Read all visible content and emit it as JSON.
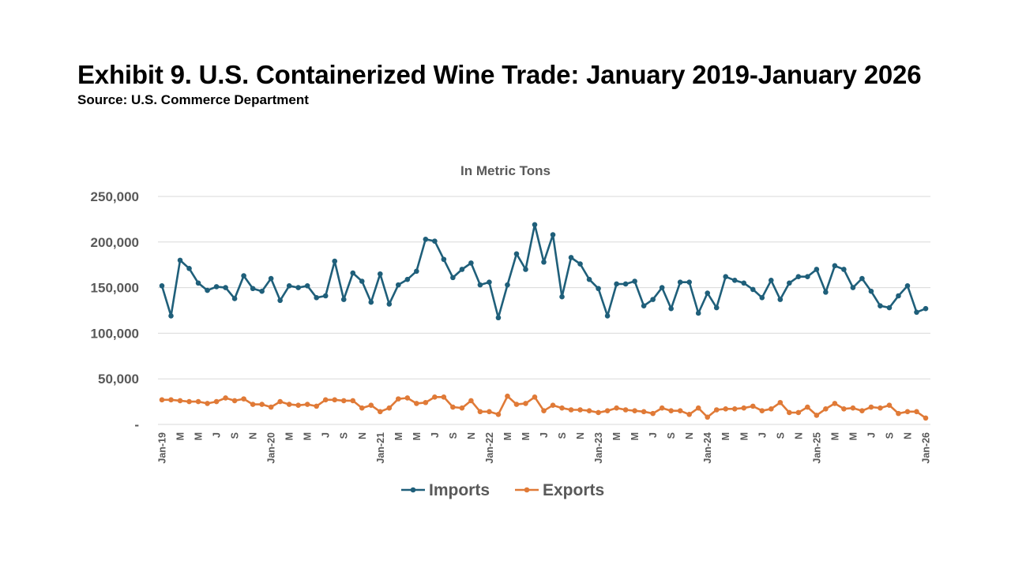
{
  "header": {
    "title": "Exhibit 9. U.S. Containerized Wine Trade: January 2019-January 2026",
    "source": "Source: U.S. Commerce Department"
  },
  "chart_data": {
    "type": "line",
    "subtitle": "In Metric Tons",
    "ylim": [
      0,
      250000
    ],
    "yticks": [
      0,
      50000,
      100000,
      150000,
      200000,
      250000
    ],
    "ytick_labels": [
      "-",
      "50,000",
      "100,000",
      "150,000",
      "200,000",
      "250,000"
    ],
    "grid": true,
    "legend_position": "bottom",
    "categories": [
      "Jan-19",
      "F",
      "M",
      "A",
      "M",
      "J",
      "J",
      "A",
      "S",
      "O",
      "N",
      "D",
      "Jan-20",
      "F",
      "M",
      "A",
      "M",
      "J",
      "J",
      "A",
      "S",
      "O",
      "N",
      "D",
      "Jan-21",
      "F",
      "M",
      "A",
      "M",
      "J",
      "J",
      "A",
      "S",
      "O",
      "N",
      "D",
      "Jan-22",
      "F",
      "M",
      "A",
      "M",
      "J",
      "J",
      "A",
      "S",
      "O",
      "N",
      "D",
      "Jan-23",
      "F",
      "M",
      "A",
      "M",
      "J",
      "J",
      "A",
      "S",
      "O",
      "N",
      "D",
      "Jan-24",
      "F",
      "M",
      "A",
      "M",
      "J",
      "J",
      "A",
      "S",
      "O",
      "N",
      "D",
      "Jan-25",
      "F",
      "M",
      "A",
      "M",
      "J",
      "J",
      "A",
      "S",
      "O",
      "N",
      "D",
      "Jan-26"
    ],
    "tick_labels": [
      {
        "index": 0,
        "label": "Jan-19"
      },
      {
        "index": 2,
        "label": "M"
      },
      {
        "index": 4,
        "label": "M"
      },
      {
        "index": 6,
        "label": "J"
      },
      {
        "index": 8,
        "label": "S"
      },
      {
        "index": 10,
        "label": "N"
      },
      {
        "index": 12,
        "label": "Jan-20"
      },
      {
        "index": 14,
        "label": "M"
      },
      {
        "index": 16,
        "label": "M"
      },
      {
        "index": 18,
        "label": "J"
      },
      {
        "index": 20,
        "label": "S"
      },
      {
        "index": 22,
        "label": "N"
      },
      {
        "index": 24,
        "label": "Jan-21"
      },
      {
        "index": 26,
        "label": "M"
      },
      {
        "index": 28,
        "label": "M"
      },
      {
        "index": 30,
        "label": "J"
      },
      {
        "index": 32,
        "label": "S"
      },
      {
        "index": 34,
        "label": "N"
      },
      {
        "index": 36,
        "label": "Jan-22"
      },
      {
        "index": 38,
        "label": "M"
      },
      {
        "index": 40,
        "label": "M"
      },
      {
        "index": 42,
        "label": "J"
      },
      {
        "index": 44,
        "label": "S"
      },
      {
        "index": 46,
        "label": "N"
      },
      {
        "index": 48,
        "label": "Jan-23"
      },
      {
        "index": 50,
        "label": "M"
      },
      {
        "index": 52,
        "label": "M"
      },
      {
        "index": 54,
        "label": "J"
      },
      {
        "index": 56,
        "label": "S"
      },
      {
        "index": 58,
        "label": "N"
      },
      {
        "index": 60,
        "label": "Jan-24"
      },
      {
        "index": 62,
        "label": "M"
      },
      {
        "index": 64,
        "label": "M"
      },
      {
        "index": 66,
        "label": "J"
      },
      {
        "index": 68,
        "label": "S"
      },
      {
        "index": 70,
        "label": "N"
      },
      {
        "index": 72,
        "label": "Jan-25"
      },
      {
        "index": 74,
        "label": "M"
      },
      {
        "index": 76,
        "label": "M"
      },
      {
        "index": 78,
        "label": "J"
      },
      {
        "index": 80,
        "label": "S"
      },
      {
        "index": 82,
        "label": "N"
      },
      {
        "index": 84,
        "label": "Jan-26"
      }
    ],
    "series": [
      {
        "name": "Imports",
        "color": "#1f5f7a",
        "values": [
          152000,
          119000,
          180000,
          171000,
          155000,
          147000,
          151000,
          150000,
          138000,
          163000,
          149000,
          146000,
          160000,
          136000,
          152000,
          150000,
          152000,
          139000,
          141000,
          179000,
          137000,
          166000,
          157000,
          134000,
          165000,
          132000,
          153000,
          159000,
          168000,
          203000,
          201000,
          181000,
          161000,
          170000,
          177000,
          153000,
          156000,
          117000,
          153000,
          187000,
          170000,
          219000,
          178000,
          208000,
          140000,
          183000,
          176000,
          159000,
          149000,
          119000,
          154000,
          154000,
          157000,
          130000,
          137000,
          150000,
          127000,
          156000,
          156000,
          122000,
          144000,
          128000,
          162000,
          158000,
          155000,
          148000,
          139000,
          158000,
          137000,
          155000,
          162000,
          162000,
          170000,
          145000,
          174000,
          170000,
          150000,
          160000,
          146000,
          130000,
          128000,
          141000,
          152000,
          123000,
          127000
        ]
      },
      {
        "name": "Exports",
        "color": "#e07a37",
        "values": [
          27000,
          27000,
          26000,
          25000,
          25000,
          23000,
          25000,
          29000,
          26000,
          28000,
          22000,
          22000,
          19000,
          25000,
          22000,
          21000,
          22000,
          20000,
          27000,
          27000,
          26000,
          26000,
          18000,
          21000,
          14000,
          18000,
          28000,
          29000,
          23000,
          24000,
          30000,
          30000,
          19000,
          18000,
          26000,
          14000,
          14000,
          11000,
          31000,
          22000,
          23000,
          30000,
          15000,
          21000,
          18000,
          16000,
          16000,
          15000,
          13000,
          15000,
          18000,
          16000,
          15000,
          14000,
          12000,
          18000,
          15000,
          15000,
          11000,
          18000,
          8000,
          16000,
          17000,
          17000,
          18000,
          20000,
          15000,
          17000,
          24000,
          13000,
          13000,
          19000,
          10000,
          17000,
          23000,
          17000,
          18000,
          15000,
          19000,
          18000,
          21000,
          12000,
          14000,
          14000,
          7000
        ]
      }
    ]
  }
}
